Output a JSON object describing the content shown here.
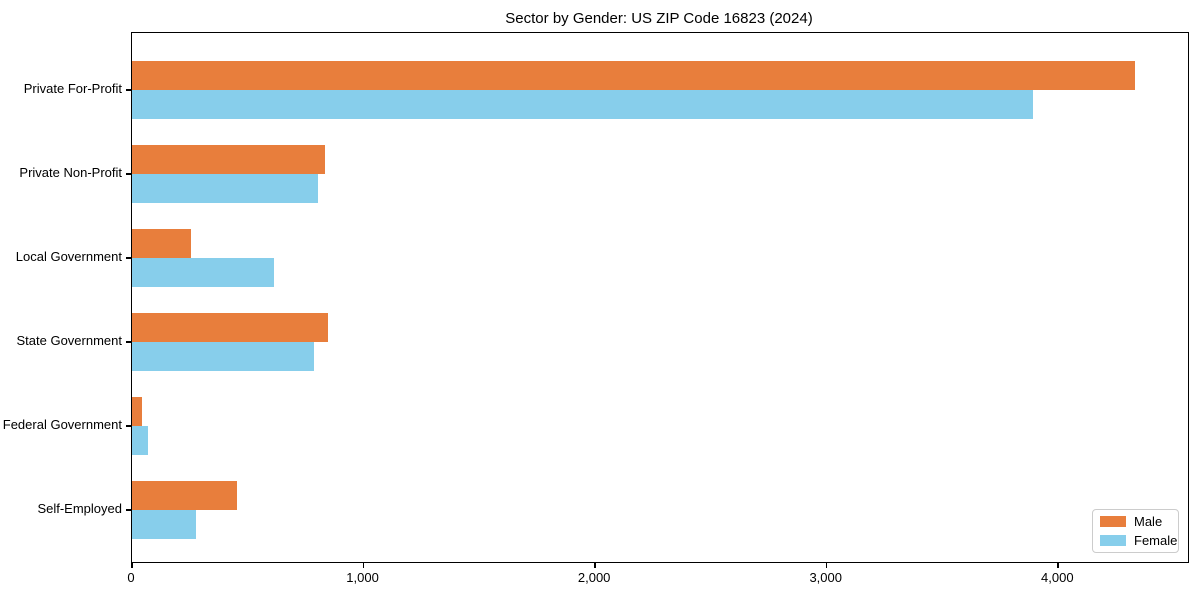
{
  "chart_data": {
    "type": "bar",
    "orientation": "horizontal",
    "title": "Sector by Gender: US ZIP Code 16823 (2024)",
    "categories": [
      "Private For-Profit",
      "Private Non-Profit",
      "Local Government",
      "State Government",
      "Federal Government",
      "Self-Employed"
    ],
    "series": [
      {
        "name": "Male",
        "color": "#e87e3c",
        "values": [
          4330,
          835,
          255,
          845,
          45,
          455
        ]
      },
      {
        "name": "Female",
        "color": "#87ceeb",
        "values": [
          3890,
          805,
          615,
          785,
          70,
          275
        ]
      }
    ],
    "xlabel": "",
    "ylabel": "",
    "xlim": [
      0,
      4560
    ],
    "x_ticks": [
      {
        "value": 0,
        "label": "0"
      },
      {
        "value": 1000,
        "label": "1,000"
      },
      {
        "value": 2000,
        "label": "2,000"
      },
      {
        "value": 3000,
        "label": "3,000"
      },
      {
        "value": 4000,
        "label": "4,000"
      }
    ],
    "grid": false,
    "legend": {
      "position": "lower-right",
      "entries": [
        "Male",
        "Female"
      ]
    },
    "colors": {
      "male": "#e87e3c",
      "female": "#87ceeb",
      "spine": "#000000",
      "background": "#ffffff"
    }
  }
}
